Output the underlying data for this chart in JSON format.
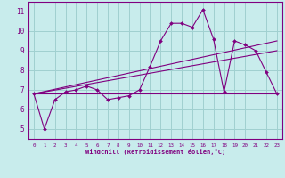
{
  "xlabel": "Windchill (Refroidissement éolien,°C)",
  "ylabel": "",
  "bg_color": "#c8ecec",
  "grid_color": "#a0d0d0",
  "line_color": "#800080",
  "x_ticks": [
    0,
    1,
    2,
    3,
    4,
    5,
    6,
    7,
    8,
    9,
    10,
    11,
    12,
    13,
    14,
    15,
    16,
    17,
    18,
    19,
    20,
    21,
    22,
    23
  ],
  "y_ticks": [
    5,
    6,
    7,
    8,
    9,
    10,
    11
  ],
  "ylim": [
    4.5,
    11.5
  ],
  "xlim": [
    -0.5,
    23.5
  ],
  "series_main": {
    "x": [
      0,
      1,
      2,
      3,
      4,
      5,
      6,
      7,
      8,
      9,
      10,
      11,
      12,
      13,
      14,
      15,
      16,
      17,
      18,
      19,
      20,
      21,
      22,
      23
    ],
    "y": [
      6.8,
      5.0,
      6.5,
      6.9,
      7.0,
      7.2,
      7.0,
      6.5,
      6.6,
      6.7,
      7.0,
      8.2,
      9.5,
      10.4,
      10.4,
      10.2,
      11.1,
      9.6,
      6.9,
      9.5,
      9.3,
      9.0,
      7.9,
      6.8
    ]
  },
  "series_line1": {
    "x": [
      0,
      23
    ],
    "y": [
      6.8,
      6.8
    ]
  },
  "series_line2": {
    "x": [
      0,
      23
    ],
    "y": [
      6.8,
      9.0
    ]
  },
  "series_line3": {
    "x": [
      0,
      23
    ],
    "y": [
      6.8,
      9.5
    ]
  }
}
